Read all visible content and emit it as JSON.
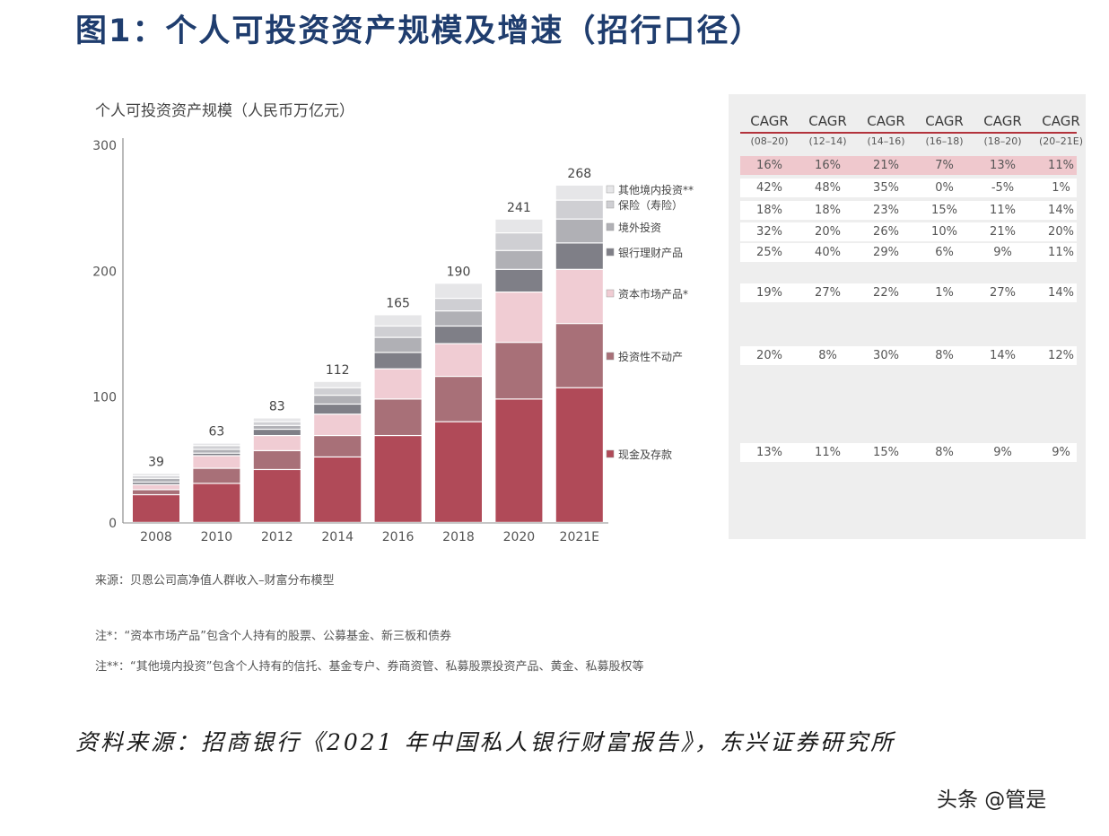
{
  "figure_title": "图1：个人可投资资产规模及增速（招行口径）",
  "chart_data": {
    "type": "bar",
    "stacked": true,
    "title": "个人可投资资产规模（人民币万亿元）",
    "categories": [
      "2008",
      "2010",
      "2012",
      "2014",
      "2016",
      "2018",
      "2020",
      "2021E"
    ],
    "totals": [
      39,
      63,
      83,
      112,
      165,
      190,
      241,
      268
    ],
    "ylim": [
      0,
      300
    ],
    "yticks": [
      0,
      100,
      200,
      300
    ],
    "grid": false,
    "legend_position": "right",
    "series": [
      {
        "name": "现金及存款",
        "color": "#b04a58",
        "values": [
          22,
          31,
          42,
          52,
          69,
          80,
          98,
          107
        ]
      },
      {
        "name": "投资性不动产",
        "color": "#a87078",
        "values": [
          4,
          12,
          15,
          17,
          29,
          36,
          45,
          51
        ]
      },
      {
        "name": "资本市场产品*",
        "color": "#f0ccd3",
        "values": [
          4,
          10,
          12,
          17,
          24,
          26,
          40,
          43
        ]
      },
      {
        "name": "银行理财产品",
        "color": "#7f7f87",
        "values": [
          2,
          2,
          5,
          8,
          13,
          14,
          18,
          21
        ]
      },
      {
        "name": "境外投资",
        "color": "#b0b0b5",
        "values": [
          3,
          3,
          3,
          7,
          12,
          12,
          15,
          19
        ]
      },
      {
        "name": "保险（寿险）",
        "color": "#cfcfd3",
        "values": [
          2,
          3,
          3,
          6,
          9,
          10,
          14,
          15
        ]
      },
      {
        "name": "其他境内投资**",
        "color": "#e6e6e8",
        "values": [
          2,
          2,
          3,
          5,
          9,
          12,
          11,
          12
        ]
      }
    ]
  },
  "cagr_table": {
    "headers": [
      {
        "top": "CAGR",
        "sub": "(08–20)"
      },
      {
        "top": "CAGR",
        "sub": "(12–14)"
      },
      {
        "top": "CAGR",
        "sub": "(14–16)"
      },
      {
        "top": "CAGR",
        "sub": "(16–18)"
      },
      {
        "top": "CAGR",
        "sub": "(18–20)"
      },
      {
        "top": "CAGR",
        "sub": "(20–21E)"
      }
    ],
    "rows": [
      [
        "16%",
        "16%",
        "21%",
        "7%",
        "13%",
        "11%"
      ],
      [
        "42%",
        "48%",
        "35%",
        "0%",
        "-5%",
        "1%"
      ],
      [
        "18%",
        "18%",
        "23%",
        "15%",
        "11%",
        "14%"
      ],
      [
        "32%",
        "20%",
        "26%",
        "10%",
        "21%",
        "20%"
      ],
      [
        "25%",
        "40%",
        "29%",
        "6%",
        "9%",
        "11%"
      ],
      [
        "19%",
        "27%",
        "22%",
        "1%",
        "27%",
        "14%"
      ],
      [
        "20%",
        "8%",
        "30%",
        "8%",
        "14%",
        "12%"
      ],
      [
        "13%",
        "11%",
        "15%",
        "8%",
        "9%",
        "9%"
      ]
    ]
  },
  "notes": {
    "source": "来源：贝恩公司高净值人群收入–财富分布模型",
    "note1": "注*：“资本市场产品”包含个人持有的股票、公募基金、新三板和债券",
    "note2": "注**：“其他境内投资”包含个人持有的信托、基金专户、券商资管、私募股票投资产品、黄金、私募股权等"
  },
  "footer_source": "资料来源：招商银行《2021 年中国私人银行财富报告》，东兴证券研究所",
  "watermark": "头条 @管是"
}
